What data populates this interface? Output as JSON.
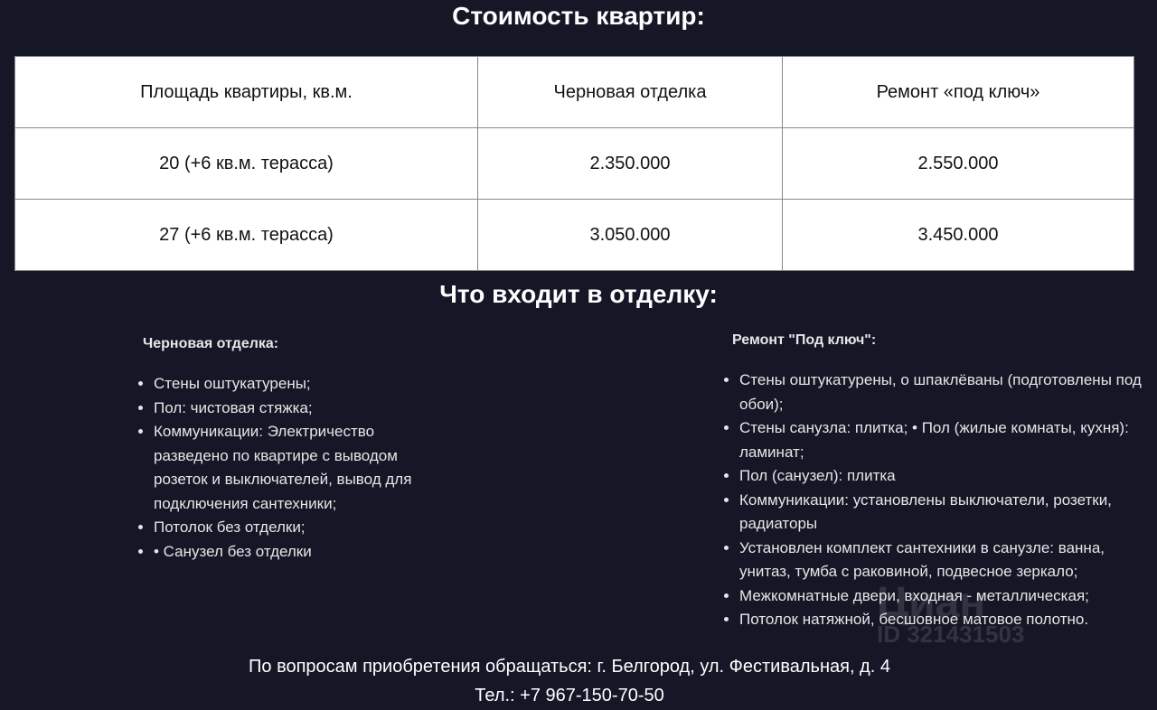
{
  "price_title": "Стоимость квартир:",
  "table": {
    "headers": [
      "Площадь квартиры, кв.м.",
      "Черновая отделка",
      "Ремонт «под ключ»"
    ],
    "rows": [
      [
        "20 (+6 кв.м. терасса)",
        "2.350.000",
        "2.550.000"
      ],
      [
        "27 (+6 кв.м. терасса)",
        "3.050.000",
        "3.450.000"
      ]
    ]
  },
  "finish_title": "Что входит в отделку:",
  "rough": {
    "heading": "Черновая отделка:",
    "items": [
      " Стены оштукатурены;",
      " Пол: чистовая стяжка;",
      " Коммуникации: Электричество разведено  по квартире с выводом розеток и выключателей, вывод для подключения сантехники;",
      " Потолок без отделки;",
      " • Санузел без отделки"
    ]
  },
  "turnkey": {
    "heading": "Ремонт \"Под ключ\":",
    "items": [
      "Стены оштукатурены, о шпаклёваны (подготовлены под обои);",
      "Стены санузла: плитка; • Пол (жилые комнаты, кухня): ламинат;",
      "Пол (санузел): плитка",
      "Коммуникации: установлены выключатели, розетки, радиаторы",
      "Установлен комплект сантехники в санузле: ванна, унитаз, тумба с раковиной, подвесное зеркало;",
      "Межкомнатные двери, входная - металлическая;",
      "Потолок натяжной, бесшовное матовое полотно."
    ]
  },
  "footer": {
    "address": "По вопросам приобретения обращаться: г. Белгород, ул. Фестивальная, д. 4",
    "phone": "Тел.: +7 967-150-70-50"
  },
  "watermark": {
    "brand": "Циан",
    "id": "ID 321431503"
  }
}
